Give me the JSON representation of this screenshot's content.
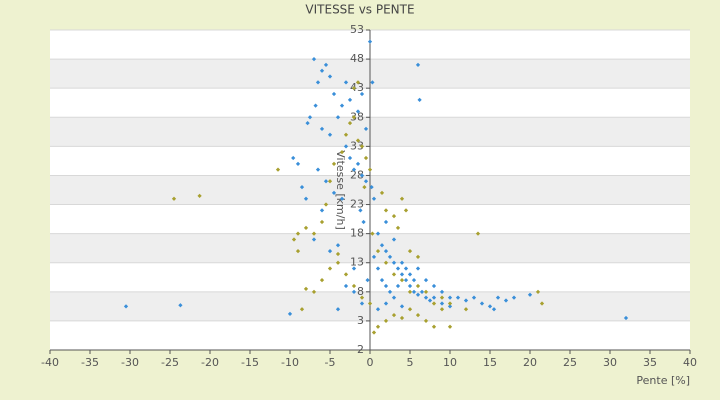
{
  "chart_data": {
    "type": "scatter",
    "title": "VITESSE vs PENTE",
    "x_label": "Pente [%]",
    "y_label": "Vitesse [km/h]",
    "xlim": [
      -40,
      40
    ],
    "xticks": [
      -40,
      -35,
      -30,
      -25,
      -20,
      -15,
      -10,
      -5,
      0,
      5,
      10,
      15,
      20,
      25,
      30,
      35,
      40
    ],
    "ylim": [
      -2,
      53
    ],
    "yticks": [
      -2,
      3,
      8,
      13,
      18,
      23,
      28,
      33,
      38,
      43,
      48,
      53
    ],
    "grid": true,
    "series": [
      {
        "color": "#3a8fd9",
        "x": [
          -30.5,
          -23.7,
          -10,
          -9.6,
          -9,
          -8,
          -7,
          -6.5,
          -6,
          -5.5,
          -5,
          -4.5,
          -7.5,
          -7.8,
          -6.8,
          -6,
          -5,
          -4,
          -3.5,
          -3,
          -2.5,
          -2,
          -1.5,
          -1,
          -0.5,
          0,
          0.3,
          -3,
          -2.5,
          -2,
          -1.5,
          -1,
          -0.5,
          0.2,
          -6.5,
          -5.5,
          -4.5,
          -3.5,
          -1.2,
          -0.8,
          0.5,
          1,
          1.5,
          2,
          2.5,
          3,
          3.5,
          4,
          4.5,
          5,
          5.5,
          6,
          6.5,
          7,
          7.5,
          8,
          9,
          10,
          11,
          12,
          13,
          14,
          15,
          15.5,
          16,
          17,
          18,
          20,
          32,
          6,
          6.2,
          0.5,
          1,
          1.5,
          2,
          2.5,
          3,
          3.5,
          4,
          4.5,
          5,
          5.5,
          6,
          7,
          8,
          9,
          10,
          2,
          3,
          -0.3,
          -1,
          -2,
          -3,
          -4,
          -5,
          -6,
          -7,
          -8.5,
          -4,
          -2,
          1,
          2,
          4
        ],
        "values": [
          5.5,
          5.7,
          4.2,
          31,
          30,
          24,
          48,
          44,
          46,
          47,
          45,
          42,
          38,
          37,
          40,
          36,
          35,
          38,
          40,
          44,
          41,
          43,
          39,
          42,
          36,
          51,
          44,
          33,
          31,
          29,
          30,
          28,
          27,
          26,
          29,
          27,
          25,
          24,
          22,
          20,
          24,
          18,
          16,
          15,
          14,
          13,
          12,
          11,
          10,
          9,
          8,
          7.5,
          8,
          7,
          6.5,
          7,
          6,
          5.5,
          7,
          6.5,
          7,
          6,
          5.5,
          5,
          7,
          6.5,
          7,
          7.5,
          3.5,
          47,
          41,
          14,
          12,
          10,
          9,
          8,
          7,
          9,
          13,
          12,
          11,
          10,
          12,
          10,
          9,
          8,
          7,
          20,
          17,
          10,
          6,
          8,
          9,
          5,
          15,
          22,
          17,
          26,
          16,
          12,
          5,
          6,
          5.5
        ]
      },
      {
        "color": "#a8a030",
        "x": [
          -24.5,
          -21.3,
          -11.5,
          -9.5,
          -9,
          -8,
          -7,
          -6,
          -5.5,
          -5,
          -4.5,
          -3.5,
          -3,
          -2.5,
          -2,
          -1.5,
          -1,
          -0.5,
          0,
          -7,
          -6,
          -5,
          -4,
          -3,
          -2,
          -1,
          0,
          0.5,
          1,
          2,
          3,
          4,
          5,
          6,
          7,
          8,
          9,
          10,
          1,
          2,
          3,
          4,
          5,
          6,
          7,
          8,
          9,
          10,
          12,
          13.5,
          21,
          21.5,
          2,
          3,
          4,
          4.5,
          3.5,
          5,
          6,
          -8,
          -8.5,
          -9,
          -4,
          0.3,
          1.5,
          -0.7,
          -1.5,
          -2
        ],
        "values": [
          24,
          24.5,
          29,
          17,
          15,
          19,
          18,
          20,
          23,
          27,
          30,
          32,
          35,
          37,
          38,
          34,
          33,
          31,
          29,
          8,
          10,
          12,
          13,
          11,
          9,
          7,
          6,
          1,
          2,
          3,
          4,
          3.5,
          5,
          4,
          3,
          2,
          5,
          2,
          15,
          13,
          11,
          10,
          8,
          9,
          8,
          6,
          7,
          6,
          5,
          18,
          8,
          6,
          22,
          21,
          24,
          22,
          19,
          15,
          14,
          8.5,
          5,
          18,
          14.5,
          18,
          25,
          26,
          44,
          43
        ]
      }
    ]
  }
}
